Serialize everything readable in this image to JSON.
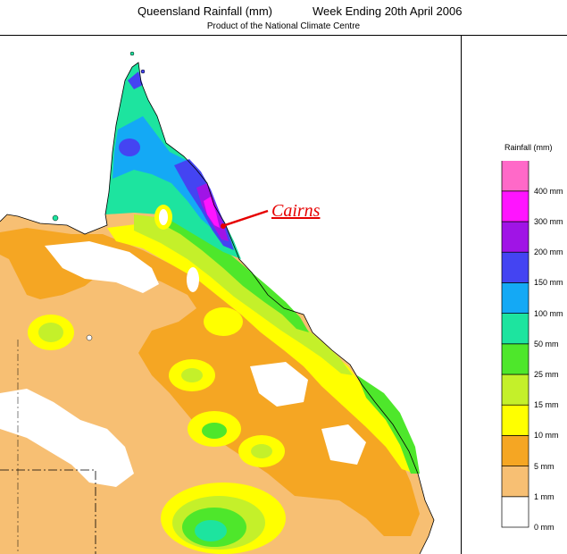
{
  "header": {
    "title_left": "Queensland Rainfall (mm)",
    "title_right": "Week Ending 20th April 2006",
    "subtitle": "Product of the National Climate Centre"
  },
  "legend": {
    "title": "Rainfall (mm)",
    "levels": [
      {
        "label": "0 mm",
        "color": "#ffffff"
      },
      {
        "label": "1 mm",
        "color": "#f7bf73"
      },
      {
        "label": "5 mm",
        "color": "#f5a623"
      },
      {
        "label": "10 mm",
        "color": "#ffff00"
      },
      {
        "label": "15 mm",
        "color": "#c4f02a"
      },
      {
        "label": "25 mm",
        "color": "#4ee72b"
      },
      {
        "label": "50 mm",
        "color": "#1de49f"
      },
      {
        "label": "100 mm",
        "color": "#14a9f5"
      },
      {
        "label": "150 mm",
        "color": "#4444f2"
      },
      {
        "label": "200 mm",
        "color": "#a014e6"
      },
      {
        "label": "300 mm",
        "color": "#ff14ff"
      },
      {
        "label": "400 mm",
        "color": "#ff69c8"
      }
    ],
    "top_level_color": "#ff69c8"
  },
  "annotation": {
    "label": "Cairns",
    "color": "#e60000"
  }
}
